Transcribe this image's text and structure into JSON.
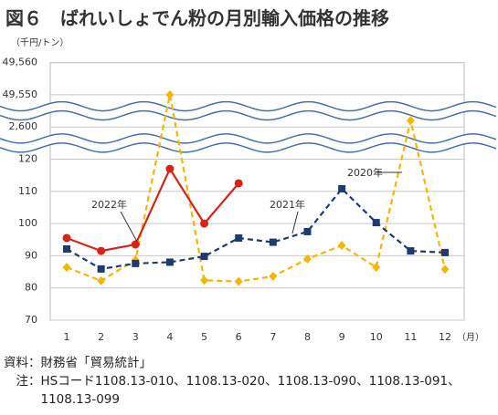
{
  "chart_data": {
    "type": "line",
    "title": "図６　ばれいしょでん粉の月別輸入価格の推移",
    "y_unit": "（千円/トン）",
    "x_unit": "（月）",
    "categories": [
      "1",
      "2",
      "3",
      "4",
      "5",
      "6",
      "7",
      "8",
      "9",
      "10",
      "11",
      "12"
    ],
    "y_segments": [
      {
        "ylim": [
          70,
          125
        ],
        "yticks": [
          70,
          80,
          90,
          100,
          110,
          120
        ]
      },
      {
        "ylim": [
          2595,
          2605
        ],
        "yticks": [
          {
            "value": 2600,
            "label": "2,600"
          }
        ]
      },
      {
        "ylim": [
          49545,
          49560
        ],
        "yticks": [
          {
            "value": 49550,
            "label": "49,550"
          },
          {
            "value": 49560,
            "label": "49,560"
          }
        ]
      }
    ],
    "grid": true,
    "series": [
      {
        "name": "2020年",
        "color": "#f2b705",
        "dash": true,
        "marker": "diamond",
        "values": [
          86.4,
          82.2,
          88.7,
          49550,
          82.4,
          82.0,
          83.6,
          89.0,
          93.2,
          86.4,
          2602,
          85.8
        ]
      },
      {
        "name": "2021年",
        "color": "#1f3a6e",
        "dash": true,
        "marker": "square",
        "values": [
          92.1,
          85.9,
          87.6,
          88.0,
          89.8,
          95.5,
          94.2,
          97.5,
          110.8,
          100.3,
          91.5,
          91.0
        ]
      },
      {
        "name": "2022年",
        "color": "#d8231b",
        "dash": false,
        "marker": "circle",
        "values": [
          95.5,
          91.5,
          93.5,
          117.0,
          100.0,
          112.5,
          null,
          null,
          null,
          null,
          null,
          null
        ]
      }
    ],
    "source": "資料：財務省「貿易統計」",
    "note_label": "　注：",
    "note": "HSコード1108.13-010、1108.13-020、1108.13-090、1108.13-091、1108.13-099"
  }
}
